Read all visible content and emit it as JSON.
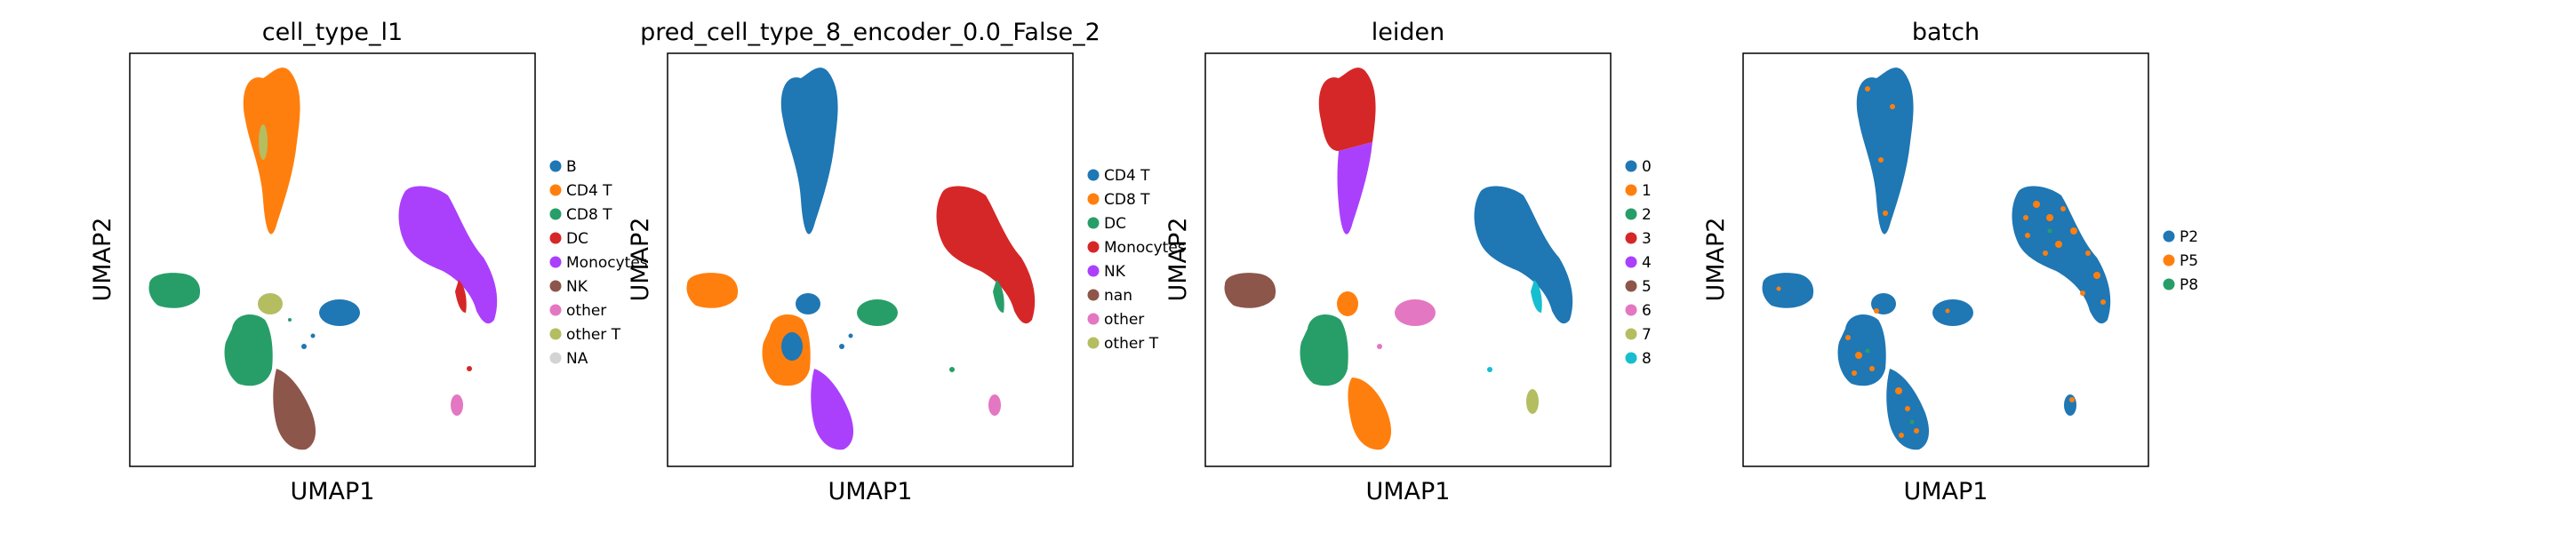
{
  "figure": {
    "panels": [
      {
        "title": "cell_type_l1",
        "legend": [
          {
            "label": "B",
            "color": "#1f77b4"
          },
          {
            "label": "CD4 T",
            "color": "#ff7f0e"
          },
          {
            "label": "CD8 T",
            "color": "#279e68"
          },
          {
            "label": "DC",
            "color": "#d62728"
          },
          {
            "label": "Monocytes",
            "color": "#aa40fc"
          },
          {
            "label": "NK",
            "color": "#8c564b"
          },
          {
            "label": "other",
            "color": "#e377c2"
          },
          {
            "label": "other T",
            "color": "#b5bd61"
          },
          {
            "label": "NA",
            "color": "#d3d3d3"
          }
        ]
      },
      {
        "title": "pred_cell_type_8_encoder_0.0_False_2",
        "legend": [
          {
            "label": "CD4 T",
            "color": "#1f77b4"
          },
          {
            "label": "CD8 T",
            "color": "#ff7f0e"
          },
          {
            "label": "DC",
            "color": "#279e68"
          },
          {
            "label": "Monocytes",
            "color": "#d62728"
          },
          {
            "label": "NK",
            "color": "#aa40fc"
          },
          {
            "label": "nan",
            "color": "#8c564b"
          },
          {
            "label": "other",
            "color": "#e377c2"
          },
          {
            "label": "other T",
            "color": "#b5bd61"
          }
        ]
      },
      {
        "title": "leiden",
        "legend": [
          {
            "label": "0",
            "color": "#1f77b4"
          },
          {
            "label": "1",
            "color": "#ff7f0e"
          },
          {
            "label": "2",
            "color": "#279e68"
          },
          {
            "label": "3",
            "color": "#d62728"
          },
          {
            "label": "4",
            "color": "#aa40fc"
          },
          {
            "label": "5",
            "color": "#8c564b"
          },
          {
            "label": "6",
            "color": "#e377c2"
          },
          {
            "label": "7",
            "color": "#b5bd61"
          },
          {
            "label": "8",
            "color": "#17becf"
          }
        ]
      },
      {
        "title": "batch",
        "legend": [
          {
            "label": "P2",
            "color": "#1f77b4"
          },
          {
            "label": "P5",
            "color": "#ff7f0e"
          },
          {
            "label": "P8",
            "color": "#279e68"
          }
        ]
      }
    ]
  },
  "chart_data": [
    {
      "type": "scatter",
      "title": "cell_type_l1",
      "xlabel": "UMAP1",
      "ylabel": "UMAP2",
      "grid": false,
      "legend_placement": "right",
      "clusters": {
        "top": "CD4 T",
        "right": "Monocytes",
        "right_tail": "DC",
        "left": "CD8 T",
        "center": "CD8 T",
        "bottom": "NK",
        "center_small": "B",
        "top_small": "other T",
        "isolated": "other"
      }
    },
    {
      "type": "scatter",
      "title": "pred_cell_type_8_encoder_0.0_False_2",
      "xlabel": "UMAP1",
      "ylabel": "UMAP2",
      "grid": false,
      "legend_placement": "right",
      "clusters": {
        "top": "CD4 T",
        "right": "Monocytes",
        "right_tail": "DC",
        "left": "CD8 T",
        "center": "CD8 T",
        "bottom": "NK",
        "isolated": "other"
      }
    },
    {
      "type": "scatter",
      "title": "leiden",
      "xlabel": "UMAP1",
      "ylabel": "UMAP2",
      "grid": false,
      "legend_placement": "right",
      "clusters": {
        "top": "3",
        "top_lower": "4",
        "right": "0",
        "right_tail": "8",
        "left": "5",
        "center": "2",
        "bottom": "1",
        "center_right": "6",
        "isolated": "7"
      }
    },
    {
      "type": "scatter",
      "title": "batch",
      "xlabel": "UMAP1",
      "ylabel": "UMAP2",
      "grid": false,
      "legend_placement": "right",
      "clusters": {
        "all": "P2",
        "mixed": "P5",
        "minor": "P8"
      }
    }
  ]
}
